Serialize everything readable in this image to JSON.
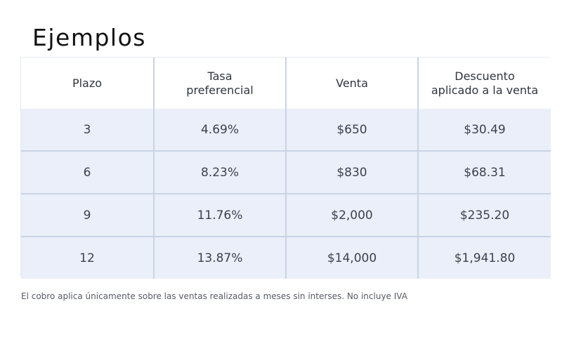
{
  "title": "Ejemplos",
  "table": {
    "headers": [
      [
        "Plazo"
      ],
      [
        "Tasa",
        "preferencial"
      ],
      [
        "Venta"
      ],
      [
        "Descuento",
        "aplicado a la venta"
      ]
    ],
    "rows": [
      [
        "3",
        "4.69%",
        "$650",
        "$30.49"
      ],
      [
        "6",
        "8.23%",
        "$830",
        "$68.31"
      ],
      [
        "9",
        "11.76%",
        "$2,000",
        "$235.20"
      ],
      [
        "12",
        "13.87%",
        "$14,000",
        "$1,941.80"
      ]
    ]
  },
  "footnote": "El cobro aplica únicamente sobre las ventas realizadas a meses sin interses. No incluye IVA"
}
